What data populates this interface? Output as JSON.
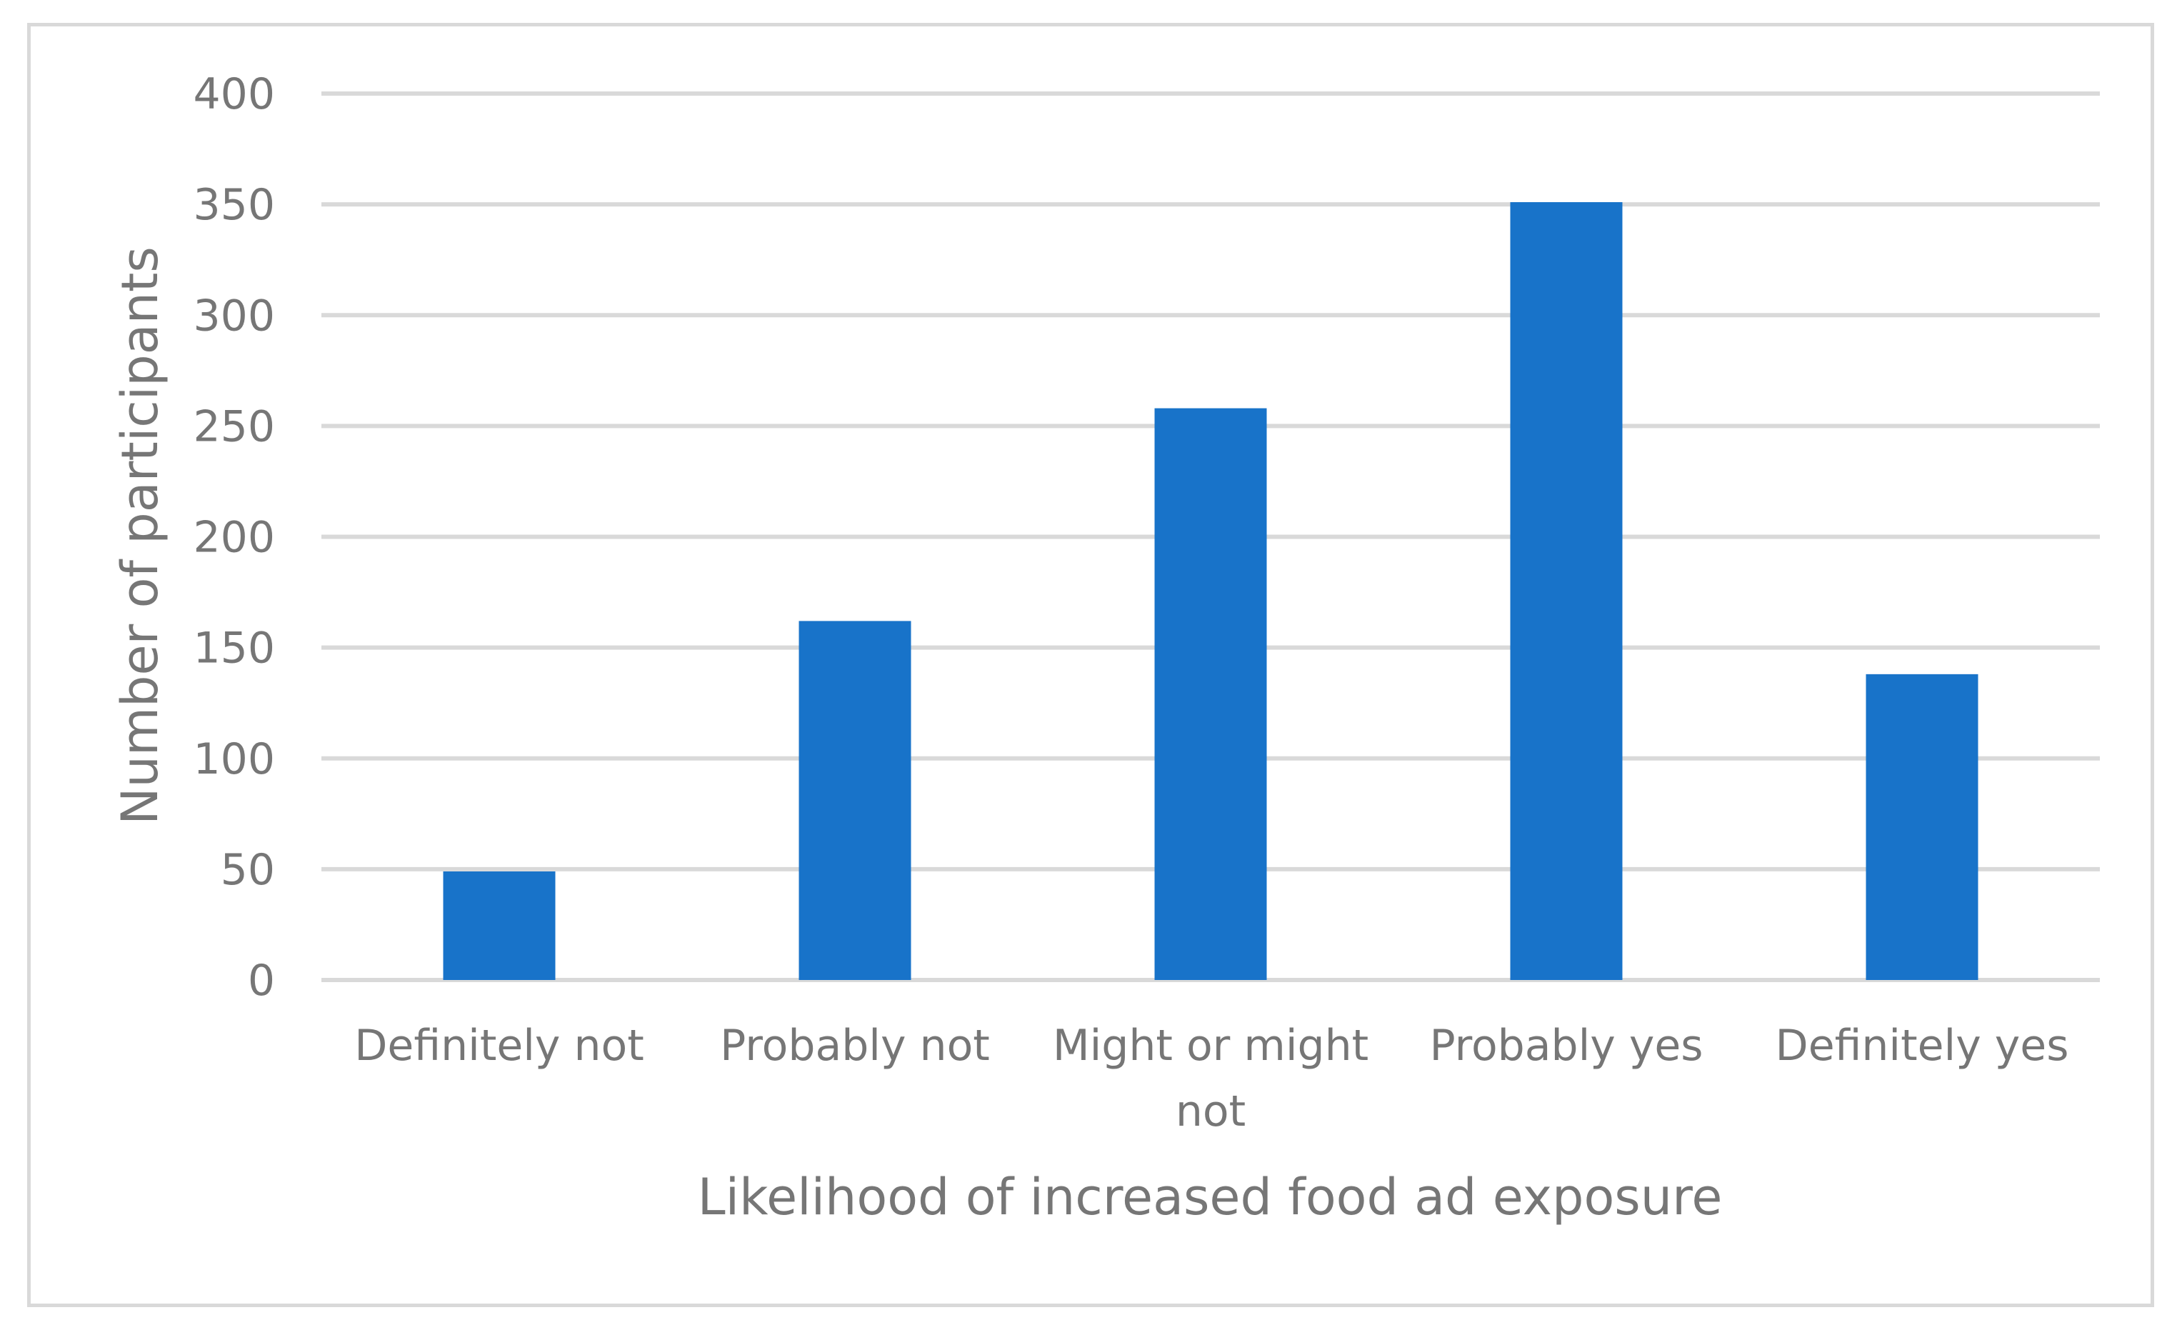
{
  "chart_data": {
    "type": "bar",
    "title": "",
    "xlabel": "Likelihood of increased food ad exposure",
    "ylabel": "Number of participants",
    "categories": [
      "Definitely not",
      "Probably not",
      "Might or might not",
      "Probably yes",
      "Definitely yes"
    ],
    "category_lines": [
      [
        "Definitely not"
      ],
      [
        "Probably not"
      ],
      [
        "Might or might",
        "not"
      ],
      [
        "Probably yes"
      ],
      [
        "Definitely yes"
      ]
    ],
    "series": [
      {
        "name": "Number of participants",
        "values": [
          49,
          162,
          258,
          351,
          138
        ]
      }
    ],
    "ylim": [
      0,
      400
    ],
    "yticks": [
      0,
      50,
      100,
      150,
      200,
      250,
      300,
      350,
      400
    ],
    "grid": true,
    "legend": "none",
    "bar_color": "#1873C9",
    "grid_color": "#D9D9D9",
    "text_color": "#767676"
  }
}
